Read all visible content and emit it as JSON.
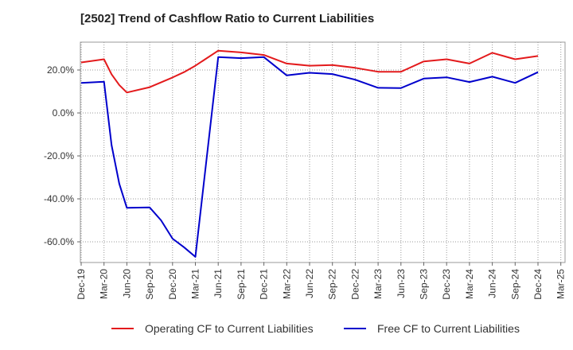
{
  "chart_data": {
    "type": "line",
    "title": "[2502]  Trend of Cashflow Ratio to Current Liabilities",
    "xlabel": "",
    "ylabel": "",
    "x_tick_labels": [
      "Dec-19",
      "Mar-20",
      "Jun-20",
      "Sep-20",
      "Dec-20",
      "Mar-21",
      "Jun-21",
      "Sep-21",
      "Dec-21",
      "Mar-22",
      "Jun-22",
      "Sep-22",
      "Dec-22",
      "Mar-23",
      "Jun-23",
      "Sep-23",
      "Dec-23",
      "Mar-24",
      "Jun-24",
      "Sep-24",
      "Dec-24",
      "Mar-25"
    ],
    "y_tick_labels": [
      "20.0%",
      "0.0%",
      "-20.0%",
      "-40.0%",
      "-60.0%"
    ],
    "y_ticks": [
      20,
      0,
      -20,
      -40,
      -60
    ],
    "ylim": [
      -70,
      33
    ],
    "xlim": [
      0,
      21
    ],
    "grid": true,
    "legend_position": "bottom",
    "series": [
      {
        "name": "Operating CF to Current Liabilities",
        "color": "#e31a1c",
        "x": [
          0,
          1,
          1.33,
          1.67,
          2,
          3,
          4,
          4.5,
          5,
          6,
          7,
          8,
          9,
          10,
          11,
          12,
          13,
          14,
          15,
          16,
          17,
          18,
          19,
          20
        ],
        "values": [
          23.5,
          25.0,
          18.0,
          13.0,
          9.5,
          12.0,
          16.5,
          19.0,
          22.0,
          29.0,
          28.2,
          27.0,
          23.0,
          22.0,
          22.3,
          21.0,
          19.2,
          19.2,
          24.0,
          25.0,
          23.0,
          28.0,
          25.0,
          26.5
        ]
      },
      {
        "name": "Free CF to Current Liabilities",
        "color": "#0000cc",
        "x": [
          0,
          1,
          1.33,
          1.67,
          2,
          3,
          3.5,
          4,
          4.5,
          5,
          6,
          7,
          8,
          9,
          10,
          11,
          12,
          13,
          14,
          15,
          16,
          17,
          18,
          19,
          20
        ],
        "values": [
          14.0,
          14.5,
          -15.0,
          -33.0,
          -44.2,
          -44.0,
          -50.0,
          -58.5,
          -62.5,
          -67.0,
          26.0,
          25.5,
          26.0,
          17.5,
          18.7,
          18.1,
          15.5,
          11.7,
          11.6,
          16.0,
          16.6,
          14.4,
          16.9,
          14.0,
          19.0
        ]
      }
    ]
  }
}
